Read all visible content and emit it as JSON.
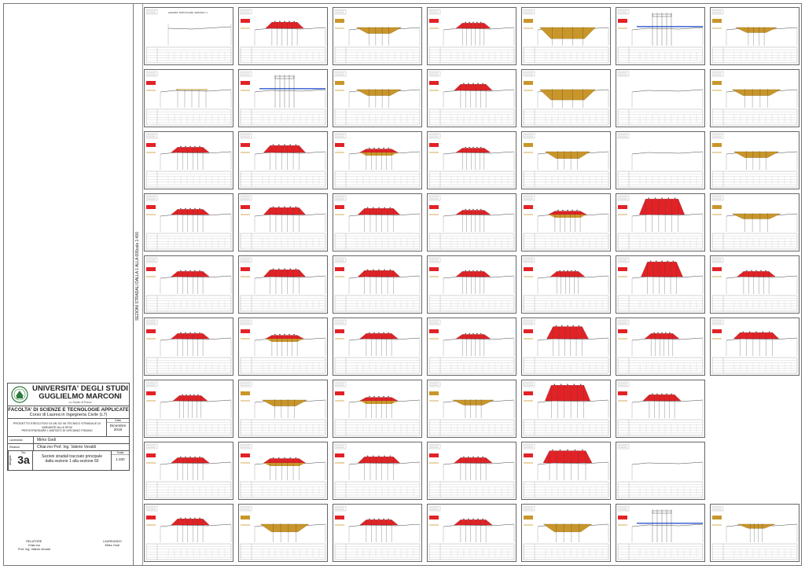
{
  "university": {
    "name_line1": "UNIVERSITA' DEGLI STUDI",
    "name_line2": "GUGLIELMO MARCONI",
    "subtitle": "Lo Studio di Roma"
  },
  "faculty": {
    "name": "FACOLTA' DI SCIENZE E TECNOLOGIE APPLICATE",
    "course": "Corso di Laurea in Ingegneria Civile (L7)"
  },
  "project": {
    "description_line1": "PROGETTO ESECUTIVO DI UN 3O VA TECNICO STRADALE DI VARIANTE ALLA SP42",
    "description_line2": "PER BYPASSARE L'ABITATO DI ORCIANO PISANO",
    "date_label": "Data",
    "date_value_line1": "Dicembre",
    "date_value_line2": "2016"
  },
  "people": {
    "student_label": "Laureando",
    "student_name": "Mirko Godi",
    "advisor_label": "Relatore",
    "advisor_name": "Chiar.mo Prof. Ing. Valerio Veraldi"
  },
  "sheet": {
    "side_label": "Allegato",
    "tav_label": "Tav.",
    "tav_number": "3a",
    "content_line1": "Sezioni stradali tracciato principale",
    "content_line2": "dalla sezione 1 alla sezione 60",
    "scale_label": "Scala",
    "scale_value": "1:400"
  },
  "vertical_strip": {
    "main_label": "SEZIONI STRADALI DALLA 1 ALLA 60",
    "scale_label": "Scala 1:400"
  },
  "signatures": {
    "left_role": "RELATORE",
    "left_line1": "Chiar.mo",
    "left_line2": "Prof. Ing. Valerio Veraldi",
    "right_role": "LAUREANDO",
    "right_name": "Mirko Godi"
  },
  "first_section_header": "LEGENDA: PARTICOLARE, SEZIONE N. 1",
  "colors": {
    "fill_red": "#e32226",
    "cut_tan": "#c9962a",
    "bridge_blue": "#4a6fd6",
    "frame": "#666666"
  },
  "sections": [
    {
      "row": 0,
      "col": 0,
      "type": "legend"
    },
    {
      "row": 0,
      "col": 1,
      "type": "fill",
      "h": 0.35,
      "w": 0.35
    },
    {
      "row": 0,
      "col": 2,
      "type": "cut",
      "h": 0.3,
      "w": 0.4
    },
    {
      "row": 0,
      "col": 3,
      "type": "fill",
      "h": 0.3,
      "w": 0.3
    },
    {
      "row": 0,
      "col": 4,
      "type": "cut",
      "h": 0.6,
      "w": 0.55
    },
    {
      "row": 0,
      "col": 5,
      "type": "bridge"
    },
    {
      "row": 0,
      "col": 6,
      "type": "cut",
      "h": 0.25,
      "w": 0.35
    },
    {
      "row": 1,
      "col": 0,
      "type": "flat"
    },
    {
      "row": 1,
      "col": 1,
      "type": "bridge"
    },
    {
      "row": 1,
      "col": 2,
      "type": "cut",
      "h": 0.3,
      "w": 0.4
    },
    {
      "row": 1,
      "col": 3,
      "type": "fill",
      "h": 0.35,
      "w": 0.35
    },
    {
      "row": 1,
      "col": 4,
      "type": "cut",
      "h": 0.55,
      "w": 0.55
    },
    {
      "row": 1,
      "col": 5,
      "type": "empty"
    },
    {
      "row": 1,
      "col": 6,
      "type": "cut",
      "h": 0.3,
      "w": 0.45
    },
    {
      "row": 2,
      "col": 0,
      "type": "fill",
      "h": 0.3,
      "w": 0.35
    },
    {
      "row": 2,
      "col": 1,
      "type": "fill",
      "h": 0.4,
      "w": 0.4
    },
    {
      "row": 2,
      "col": 2,
      "type": "mixed",
      "h": 0.2,
      "w": 0.35
    },
    {
      "row": 2,
      "col": 3,
      "type": "fill",
      "h": 0.25,
      "w": 0.3
    },
    {
      "row": 2,
      "col": 4,
      "type": "cut",
      "h": 0.35,
      "w": 0.4
    },
    {
      "row": 2,
      "col": 5,
      "type": "empty"
    },
    {
      "row": 2,
      "col": 6,
      "type": "cut",
      "h": 0.3,
      "w": 0.4
    },
    {
      "row": 3,
      "col": 0,
      "type": "fill",
      "h": 0.3,
      "w": 0.35
    },
    {
      "row": 3,
      "col": 1,
      "type": "fill",
      "h": 0.4,
      "w": 0.4
    },
    {
      "row": 3,
      "col": 2,
      "type": "fill",
      "h": 0.35,
      "w": 0.4
    },
    {
      "row": 3,
      "col": 3,
      "type": "fill",
      "h": 0.25,
      "w": 0.3
    },
    {
      "row": 3,
      "col": 4,
      "type": "mixed",
      "h": 0.2,
      "w": 0.35
    },
    {
      "row": 3,
      "col": 5,
      "type": "tall",
      "h": 0.9,
      "w": 0.45
    },
    {
      "row": 3,
      "col": 6,
      "type": "cut",
      "h": 0.25,
      "w": 0.45
    },
    {
      "row": 4,
      "col": 0,
      "type": "fill",
      "h": 0.3,
      "w": 0.35
    },
    {
      "row": 4,
      "col": 1,
      "type": "fill",
      "h": 0.4,
      "w": 0.4
    },
    {
      "row": 4,
      "col": 2,
      "type": "fill",
      "h": 0.35,
      "w": 0.4
    },
    {
      "row": 4,
      "col": 3,
      "type": "fill",
      "h": 0.3,
      "w": 0.3
    },
    {
      "row": 4,
      "col": 4,
      "type": "fill",
      "h": 0.3,
      "w": 0.3
    },
    {
      "row": 4,
      "col": 5,
      "type": "tall",
      "h": 0.85,
      "w": 0.4
    },
    {
      "row": 4,
      "col": 6,
      "type": "fill",
      "h": 0.3,
      "w": 0.35
    },
    {
      "row": 5,
      "col": 0,
      "type": "fill",
      "h": 0.3,
      "w": 0.35
    },
    {
      "row": 5,
      "col": 1,
      "type": "mixed",
      "h": 0.2,
      "w": 0.35
    },
    {
      "row": 5,
      "col": 2,
      "type": "fill",
      "h": 0.3,
      "w": 0.35
    },
    {
      "row": 5,
      "col": 3,
      "type": "fill",
      "h": 0.25,
      "w": 0.3
    },
    {
      "row": 5,
      "col": 4,
      "type": "tall",
      "h": 0.7,
      "w": 0.4
    },
    {
      "row": 5,
      "col": 5,
      "type": "fill",
      "h": 0.3,
      "w": 0.3
    },
    {
      "row": 5,
      "col": 6,
      "type": "fill",
      "h": 0.35,
      "w": 0.45
    },
    {
      "row": 6,
      "col": 0,
      "type": "fill",
      "h": 0.3,
      "w": 0.3
    },
    {
      "row": 6,
      "col": 1,
      "type": "cut",
      "h": 0.3,
      "w": 0.4
    },
    {
      "row": 6,
      "col": 2,
      "type": "mixed",
      "h": 0.2,
      "w": 0.35
    },
    {
      "row": 6,
      "col": 3,
      "type": "cut",
      "h": 0.25,
      "w": 0.35
    },
    {
      "row": 6,
      "col": 4,
      "type": "tall",
      "h": 0.9,
      "w": 0.45
    },
    {
      "row": 6,
      "col": 5,
      "type": "fill",
      "h": 0.35,
      "w": 0.35
    },
    {
      "row": 7,
      "col": 0,
      "type": "fill",
      "h": 0.3,
      "w": 0.35
    },
    {
      "row": 7,
      "col": 1,
      "type": "mixed",
      "h": 0.25,
      "w": 0.4
    },
    {
      "row": 7,
      "col": 2,
      "type": "fill",
      "h": 0.35,
      "w": 0.4
    },
    {
      "row": 7,
      "col": 3,
      "type": "fill",
      "h": 0.3,
      "w": 0.35
    },
    {
      "row": 7,
      "col": 4,
      "type": "tall",
      "h": 0.7,
      "w": 0.5
    },
    {
      "row": 7,
      "col": 5,
      "type": "empty"
    },
    {
      "row": 8,
      "col": 0,
      "type": "fill",
      "h": 0.35,
      "w": 0.35
    },
    {
      "row": 8,
      "col": 1,
      "type": "cut",
      "h": 0.4,
      "w": 0.45
    },
    {
      "row": 8,
      "col": 2,
      "type": "fill",
      "h": 0.3,
      "w": 0.35
    },
    {
      "row": 8,
      "col": 3,
      "type": "fill",
      "h": 0.3,
      "w": 0.35
    },
    {
      "row": 8,
      "col": 4,
      "type": "cut",
      "h": 0.4,
      "w": 0.45
    },
    {
      "row": 8,
      "col": 5,
      "type": "bridge"
    },
    {
      "row": 8,
      "col": 6,
      "type": "cut",
      "h": 0.2,
      "w": 0.3
    }
  ]
}
